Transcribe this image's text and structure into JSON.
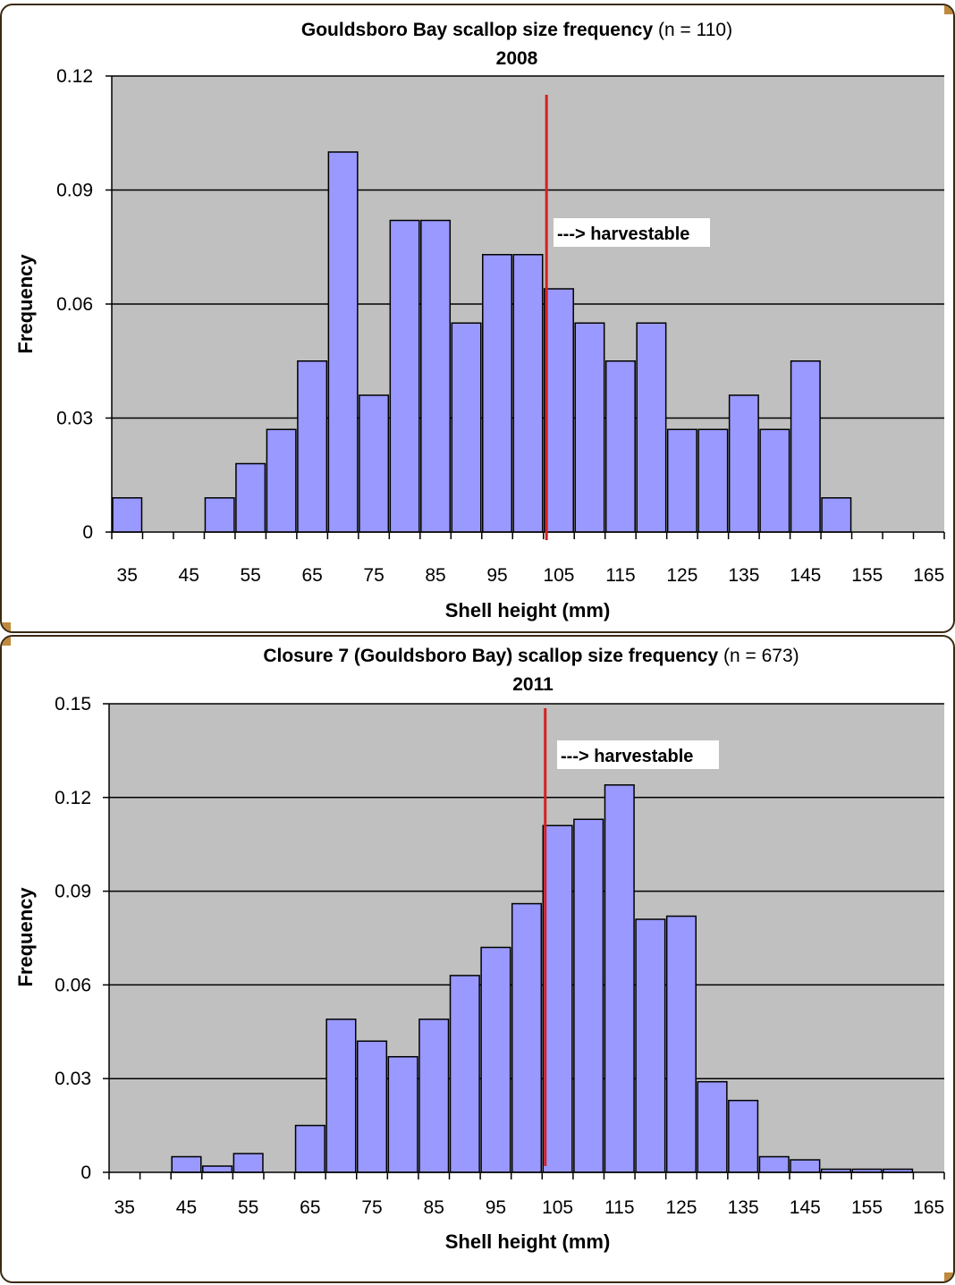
{
  "colors": {
    "plot_background": "#c0c0c0",
    "bar_fill": "#9999ff",
    "bar_stroke": "#000000",
    "harvest_line": "#d42020",
    "frame_border": "#3a2a10",
    "frame_corner": "#c08a3e"
  },
  "chart_data": [
    {
      "type": "bar",
      "title": "Gouldsboro Bay scallop size frequency",
      "title_suffix": "(n = 110)",
      "subtitle": "2008",
      "xlabel": "Shell height (mm)",
      "ylabel": "Frequency",
      "ylim": [
        0,
        0.12
      ],
      "yticks": [
        0,
        0.03,
        0.06,
        0.09,
        0.12
      ],
      "ytick_labels": [
        "0",
        "0.03",
        "0.06",
        "0.09",
        "0.12"
      ],
      "xlim": [
        32.5,
        167.5
      ],
      "xtick_labels": [
        "35",
        "45",
        "55",
        "65",
        "75",
        "85",
        "95",
        "105",
        "115",
        "125",
        "135",
        "145",
        "155",
        "165"
      ],
      "bin_width": 5,
      "bins": [
        35,
        40,
        45,
        50,
        55,
        60,
        65,
        70,
        75,
        80,
        85,
        90,
        95,
        100,
        105,
        110,
        115,
        120,
        125,
        130,
        135,
        140,
        145,
        150,
        155,
        160,
        165
      ],
      "values": [
        0.009,
        0,
        0,
        0.009,
        0.018,
        0.027,
        0.045,
        0.1,
        0.036,
        0.082,
        0.082,
        0.055,
        0.073,
        0.073,
        0.064,
        0.055,
        0.045,
        0.055,
        0.027,
        0.027,
        0.036,
        0.027,
        0.045,
        0.009,
        0,
        0,
        0
      ],
      "grid": true,
      "legend": "none",
      "harvest_line_x": 103,
      "annotation": "---> harvestable"
    },
    {
      "type": "bar",
      "title": "Closure 7 (Gouldsboro Bay) scallop size frequency",
      "title_suffix": "(n = 673)",
      "subtitle": "2011",
      "xlabel": "Shell height (mm)",
      "ylabel": "Frequency",
      "ylim": [
        0,
        0.15
      ],
      "yticks": [
        0,
        0.03,
        0.06,
        0.09,
        0.12,
        0.15
      ],
      "ytick_labels": [
        "0",
        "0.03",
        "0.06",
        "0.09",
        "0.12",
        "0.15"
      ],
      "xlim": [
        32.5,
        167.5
      ],
      "xtick_labels": [
        "35",
        "45",
        "55",
        "65",
        "75",
        "85",
        "95",
        "105",
        "115",
        "125",
        "135",
        "145",
        "155",
        "165"
      ],
      "bin_width": 5,
      "bins": [
        35,
        40,
        45,
        50,
        55,
        60,
        65,
        70,
        75,
        80,
        85,
        90,
        95,
        100,
        105,
        110,
        115,
        120,
        125,
        130,
        135,
        140,
        145,
        150,
        155,
        160,
        165
      ],
      "values": [
        0,
        0,
        0.005,
        0.002,
        0.006,
        0,
        0.015,
        0.049,
        0.042,
        0.037,
        0.049,
        0.063,
        0.072,
        0.086,
        0.111,
        0.113,
        0.124,
        0.081,
        0.082,
        0.029,
        0.023,
        0.005,
        0.004,
        0.001,
        0.001,
        0.001,
        0
      ],
      "grid": true,
      "legend": "none",
      "harvest_line_x": 103,
      "annotation": "---> harvestable"
    }
  ]
}
